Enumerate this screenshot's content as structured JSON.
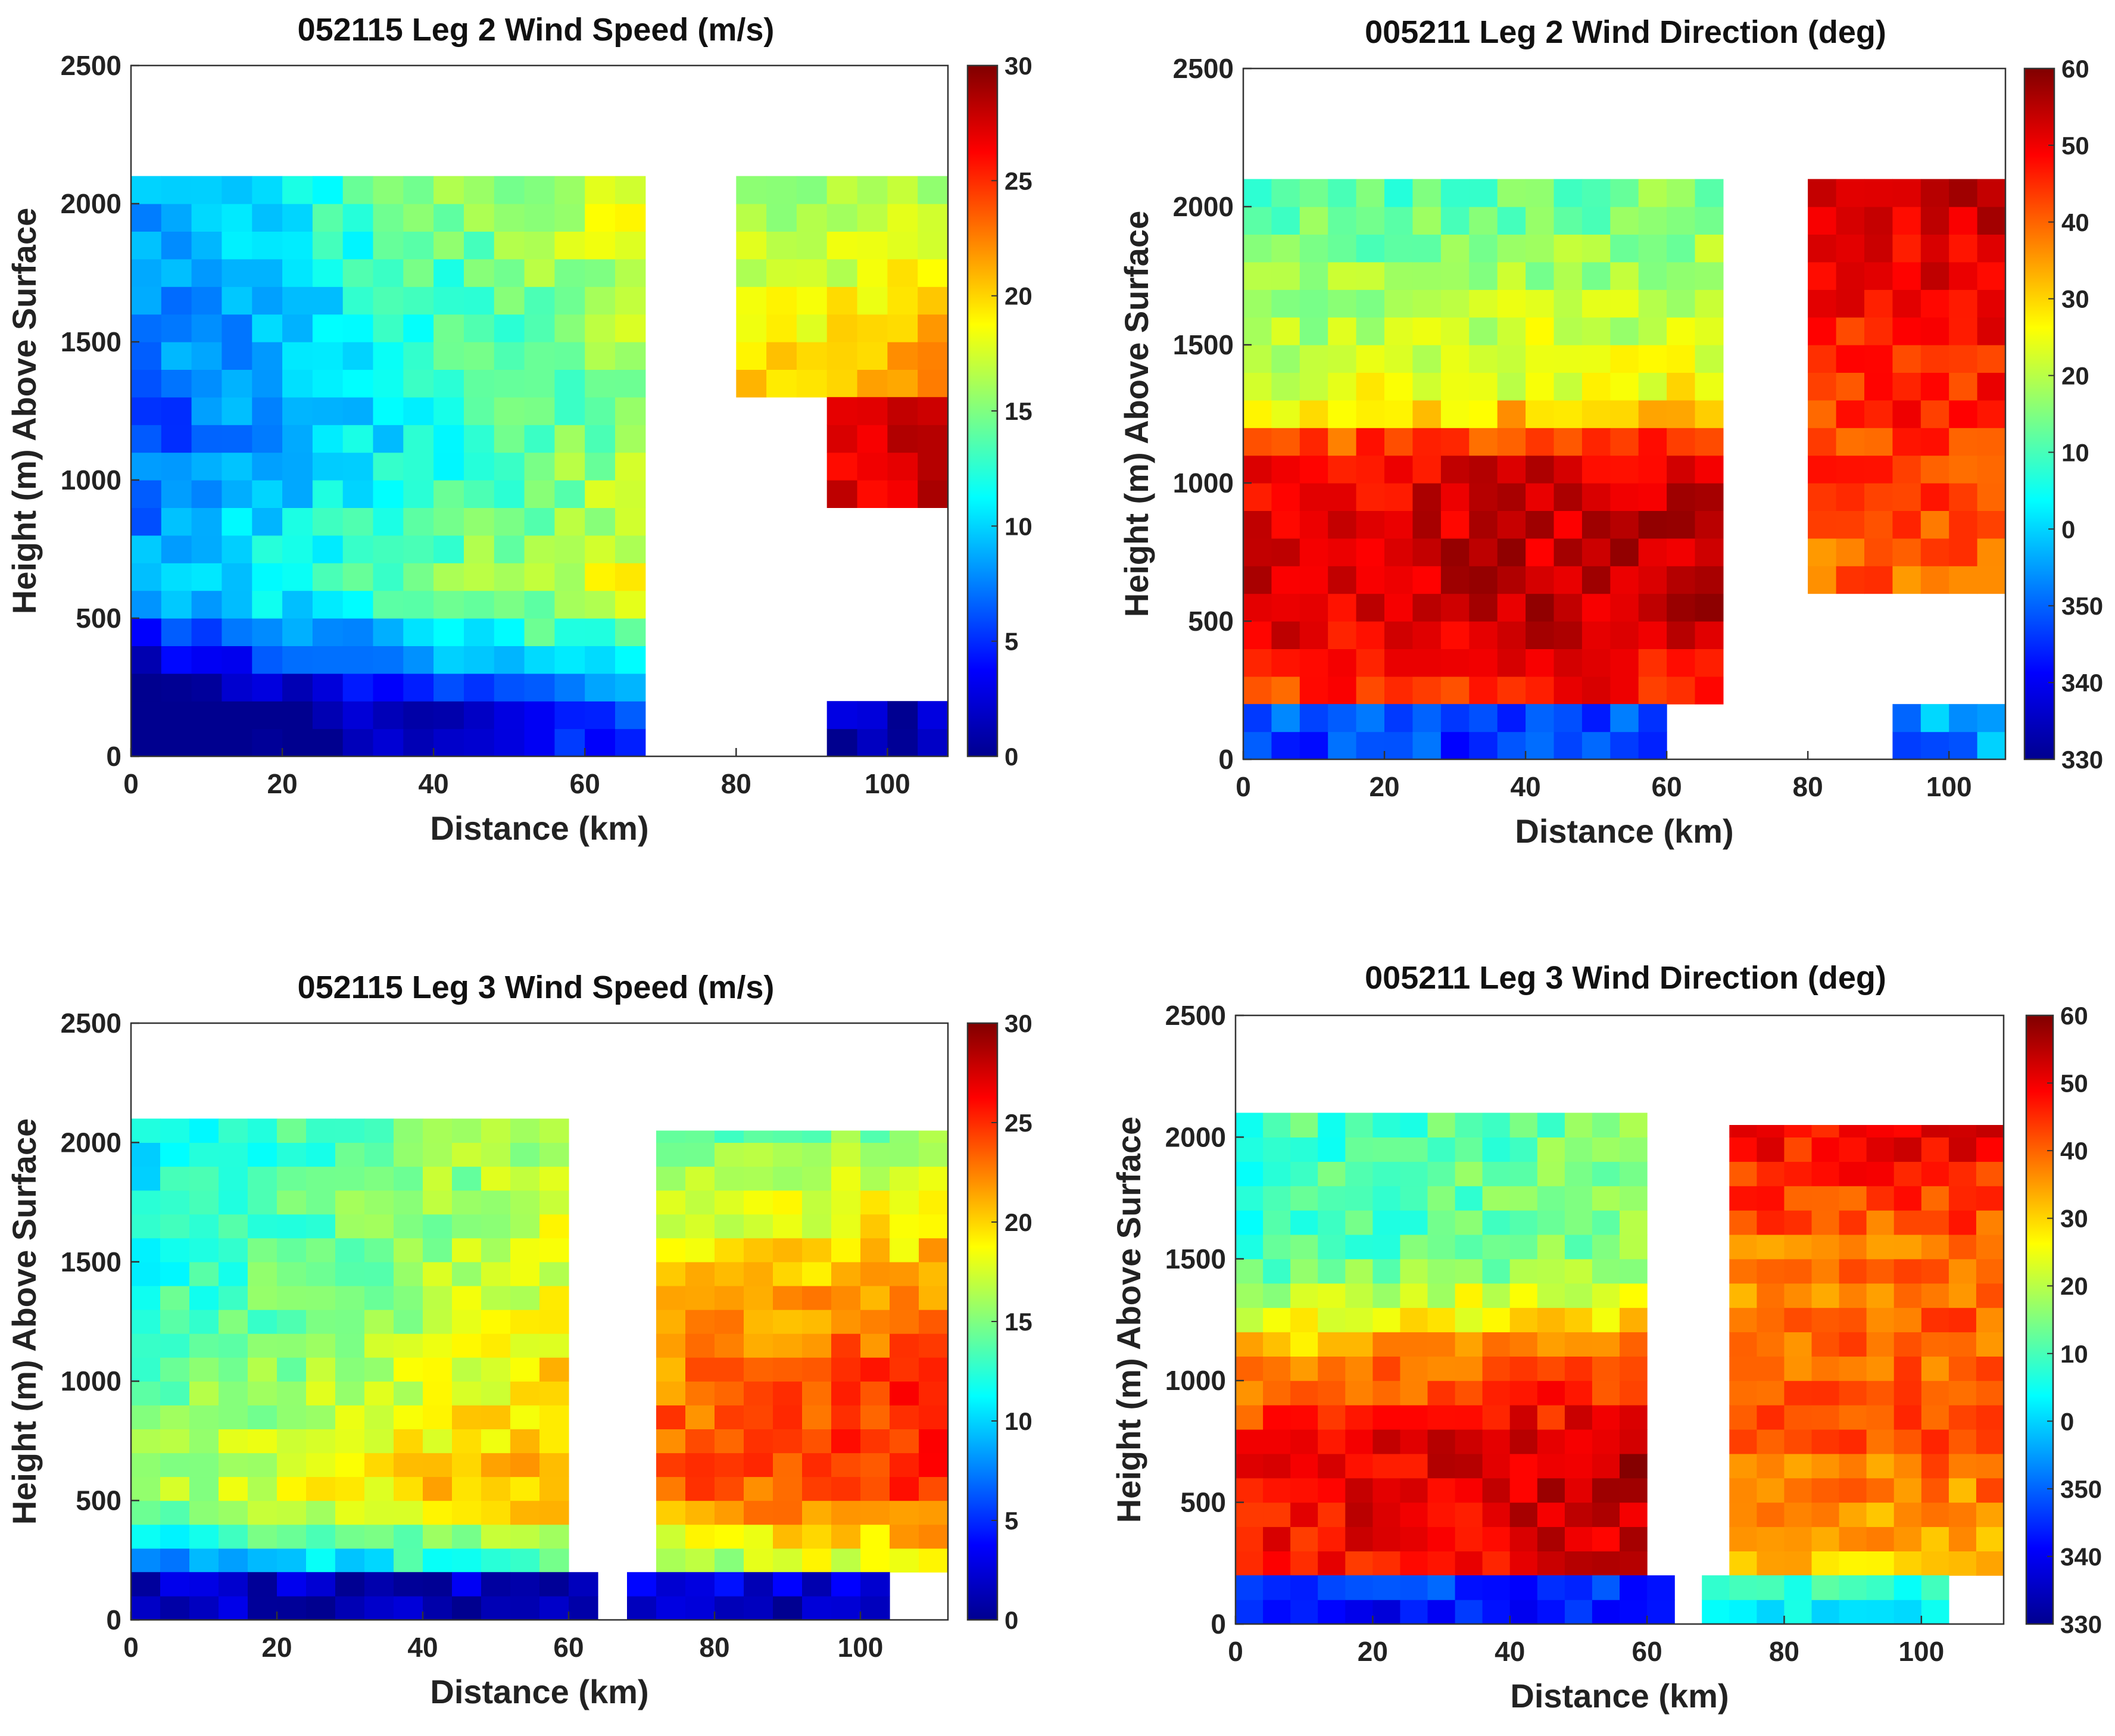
{
  "figure": {
    "description_free": true
  },
  "palette": {
    "colormap": [
      "#00008f",
      "#0000ff",
      "#0080ff",
      "#00ffff",
      "#80ff80",
      "#ffff00",
      "#ff8000",
      "#ff0000",
      "#800000"
    ],
    "background": "#ffffff"
  },
  "chart_data": [
    {
      "id": "p1",
      "type": "heatmap",
      "title": "052115 Leg 2 Wind Speed (m/s)",
      "xlabel": "Distance (km)",
      "ylabel": "Height (m) Above Surface",
      "xlim": [
        0,
        108
      ],
      "ylim": [
        0,
        2500
      ],
      "xticks": [
        "0",
        "20",
        "40",
        "60",
        "80",
        "100"
      ],
      "xtick_values": [
        0,
        20,
        40,
        60,
        80,
        100
      ],
      "yticks": [
        "0",
        "500",
        "1000",
        "1500",
        "2000",
        "2500"
      ],
      "ytick_values": [
        0,
        500,
        1000,
        1500,
        2000,
        2500
      ],
      "colorbar": {
        "min": 0,
        "max": 30,
        "ticks": [
          "0",
          "5",
          "10",
          "15",
          "20",
          "25",
          "30"
        ],
        "tick_values": [
          0,
          5,
          10,
          15,
          20,
          25,
          30
        ]
      },
      "regions": [
        {
          "x": [
            0,
            68
          ],
          "y": [
            0,
            2100
          ],
          "profile": [
            [
              0,
              1
            ],
            [
              200,
              2
            ],
            [
              300,
              6
            ],
            [
              600,
              14
            ],
            [
              1200,
              11
            ],
            [
              2100,
              14
            ]
          ],
          "x_gradient": 10
        },
        {
          "x": [
            80,
            108
          ],
          "y": [
            1300,
            2100
          ],
          "profile": [
            [
              1300,
              22
            ],
            [
              2100,
              15
            ]
          ],
          "x_gradient": 2
        },
        {
          "x": [
            92,
            108
          ],
          "y": [
            900,
            1300
          ],
          "profile": [
            [
              900,
              27
            ],
            [
              1300,
              27
            ]
          ],
          "x_gradient": 0
        },
        {
          "x": [
            92,
            108
          ],
          "y": [
            0,
            200
          ],
          "profile": [
            [
              0,
              1
            ],
            [
              200,
              2
            ]
          ],
          "x_gradient": 0
        }
      ],
      "note": "Cell colors approximate wind speed in m/s; white areas are missing data."
    },
    {
      "id": "p2",
      "type": "heatmap",
      "title": "005211 Leg 2 Wind Direction (deg)",
      "xlabel": "Distance (km)",
      "ylabel": "Height (m) Above Surface",
      "xlim": [
        0,
        108
      ],
      "ylim": [
        0,
        2500
      ],
      "xticks": [
        "0",
        "20",
        "40",
        "60",
        "80",
        "100"
      ],
      "xtick_values": [
        0,
        20,
        40,
        60,
        80,
        100
      ],
      "yticks": [
        "0",
        "500",
        "1000",
        "1500",
        "2000",
        "2500"
      ],
      "ytick_values": [
        0,
        500,
        1000,
        1500,
        2000,
        2500
      ],
      "colorbar": {
        "min": 330,
        "max": 420,
        "ticks": [
          "330",
          "340",
          "350",
          "0",
          "10",
          "20",
          "30",
          "40",
          "50",
          "60"
        ],
        "tick_values": [
          330,
          340,
          350,
          360,
          370,
          380,
          390,
          400,
          410,
          420
        ]
      },
      "regions": [
        {
          "x": [
            0,
            68
          ],
          "y": [
            200,
            2100
          ],
          "profile": [
            [
              200,
              405
            ],
            [
              600,
              415
            ],
            [
              1100,
              410
            ],
            [
              1300,
              385
            ],
            [
              2100,
              372
            ]
          ],
          "x_gradient": 4
        },
        {
          "x": [
            0,
            60
          ],
          "y": [
            0,
            200
          ],
          "profile": [
            [
              0,
              345
            ],
            [
              200,
              350
            ]
          ],
          "x_gradient": 0
        },
        {
          "x": [
            80,
            108
          ],
          "y": [
            600,
            2100
          ],
          "profile": [
            [
              600,
              400
            ],
            [
              2100,
              412
            ]
          ],
          "x_gradient": 2
        },
        {
          "x": [
            92,
            108
          ],
          "y": [
            0,
            200
          ],
          "profile": [
            [
              0,
              350
            ],
            [
              200,
              360
            ]
          ],
          "x_gradient": 8
        }
      ],
      "note": "Direction scale wraps: 330-350 deg then 0-60 deg."
    },
    {
      "id": "p3",
      "type": "heatmap",
      "title": "052115 Leg 3 Wind Speed (m/s)",
      "xlabel": "Distance (km)",
      "ylabel": "Height (m) Above Surface",
      "xlim": [
        0,
        112
      ],
      "ylim": [
        0,
        2500
      ],
      "xticks": [
        "0",
        "20",
        "40",
        "60",
        "80",
        "100"
      ],
      "xtick_values": [
        0,
        20,
        40,
        60,
        80,
        100
      ],
      "yticks": [
        "0",
        "500",
        "1000",
        "1500",
        "2000",
        "2500"
      ],
      "ytick_values": [
        0,
        500,
        1000,
        1500,
        2000,
        2500
      ],
      "colorbar": {
        "min": 0,
        "max": 30,
        "ticks": [
          "0",
          "5",
          "10",
          "15",
          "20",
          "25",
          "30"
        ],
        "tick_values": [
          0,
          5,
          10,
          15,
          20,
          25,
          30
        ]
      },
      "regions": [
        {
          "x": [
            0,
            60
          ],
          "y": [
            200,
            2100
          ],
          "profile": [
            [
              200,
              10
            ],
            [
              500,
              19
            ],
            [
              1000,
              17
            ],
            [
              1500,
              15
            ],
            [
              2100,
              14
            ]
          ],
          "x_gradient": 6
        },
        {
          "x": [
            0,
            64
          ],
          "y": [
            0,
            200
          ],
          "profile": [
            [
              0,
              1
            ],
            [
              200,
              2
            ]
          ],
          "x_gradient": 0
        },
        {
          "x": [
            72,
            112
          ],
          "y": [
            200,
            2050
          ],
          "profile": [
            [
              200,
              16
            ],
            [
              500,
              24
            ],
            [
              1000,
              24
            ],
            [
              1500,
              20
            ],
            [
              2050,
              15
            ]
          ],
          "x_gradient": 2
        },
        {
          "x": [
            68,
            104
          ],
          "y": [
            0,
            200
          ],
          "profile": [
            [
              0,
              1
            ],
            [
              200,
              3
            ]
          ],
          "x_gradient": 0
        }
      ],
      "note": "Cell colors approximate wind speed in m/s; white areas are missing data."
    },
    {
      "id": "p4",
      "type": "heatmap",
      "title": "005211 Leg 3 Wind Direction (deg)",
      "xlabel": "Distance (km)",
      "ylabel": "Height (m) Above Surface",
      "xlim": [
        0,
        112
      ],
      "ylim": [
        0,
        2500
      ],
      "xticks": [
        "0",
        "20",
        "40",
        "60",
        "80",
        "100"
      ],
      "xtick_values": [
        0,
        20,
        40,
        60,
        80,
        100
      ],
      "yticks": [
        "0",
        "500",
        "1000",
        "1500",
        "2000",
        "2500"
      ],
      "ytick_values": [
        0,
        500,
        1000,
        1500,
        2000,
        2500
      ],
      "colorbar": {
        "min": 330,
        "max": 420,
        "ticks": [
          "330",
          "340",
          "350",
          "0",
          "10",
          "20",
          "30",
          "40",
          "50",
          "60"
        ],
        "tick_values": [
          330,
          340,
          350,
          360,
          370,
          380,
          390,
          400,
          410,
          420
        ]
      },
      "regions": [
        {
          "x": [
            0,
            60
          ],
          "y": [
            200,
            2100
          ],
          "profile": [
            [
              200,
              410
            ],
            [
              700,
              412
            ],
            [
              1100,
              398
            ],
            [
              1500,
              372
            ],
            [
              2100,
              372
            ]
          ],
          "x_gradient": 6
        },
        {
          "x": [
            0,
            64
          ],
          "y": [
            0,
            200
          ],
          "profile": [
            [
              0,
              340
            ],
            [
              200,
              348
            ]
          ],
          "x_gradient": 0
        },
        {
          "x": [
            72,
            112
          ],
          "y": [
            200,
            2050
          ],
          "profile": [
            [
              200,
              390
            ],
            [
              800,
              402
            ],
            [
              1500,
              398
            ],
            [
              2050,
              410
            ]
          ],
          "x_gradient": 2
        },
        {
          "x": [
            68,
            104
          ],
          "y": [
            0,
            200
          ],
          "profile": [
            [
              0,
              362
            ],
            [
              200,
              372
            ]
          ],
          "x_gradient": 0
        }
      ],
      "note": "Direction scale wraps: 330-350 deg then 0-60 deg."
    }
  ]
}
